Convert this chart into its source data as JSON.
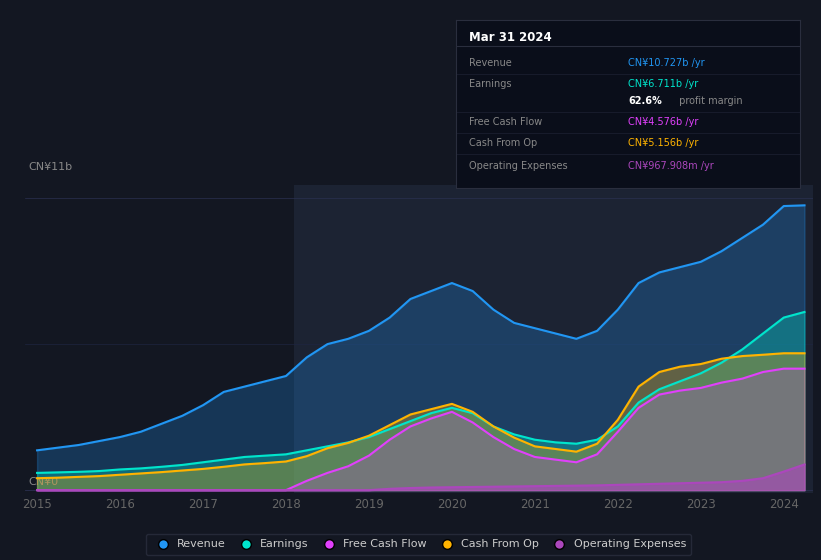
{
  "background_color": "#131722",
  "plot_bg_color": "#131722",
  "colors": {
    "revenue": "#2196f3",
    "earnings": "#00e5cc",
    "free_cash_flow": "#e040fb",
    "cash_from_op": "#ffb300",
    "operating_expenses": "#ab47bc"
  },
  "legend": [
    "Revenue",
    "Earnings",
    "Free Cash Flow",
    "Cash From Op",
    "Operating Expenses"
  ],
  "ylabel_top": "CN¥11b",
  "ylabel_bottom": "CN¥0",
  "x_years": [
    2015.0,
    2015.25,
    2015.5,
    2015.75,
    2016.0,
    2016.25,
    2016.5,
    2016.75,
    2017.0,
    2017.25,
    2017.5,
    2017.75,
    2018.0,
    2018.25,
    2018.5,
    2018.75,
    2019.0,
    2019.25,
    2019.5,
    2019.75,
    2020.0,
    2020.25,
    2020.5,
    2020.75,
    2021.0,
    2021.25,
    2021.5,
    2021.75,
    2022.0,
    2022.25,
    2022.5,
    2022.75,
    2023.0,
    2023.25,
    2023.5,
    2023.75,
    2024.0,
    2024.25
  ],
  "revenue": [
    1.5,
    1.6,
    1.7,
    1.85,
    2.0,
    2.2,
    2.5,
    2.8,
    3.2,
    3.7,
    3.9,
    4.1,
    4.3,
    5.0,
    5.5,
    5.7,
    6.0,
    6.5,
    7.2,
    7.5,
    7.8,
    7.5,
    6.8,
    6.3,
    6.1,
    5.9,
    5.7,
    6.0,
    6.8,
    7.8,
    8.2,
    8.4,
    8.6,
    9.0,
    9.5,
    10.0,
    10.7,
    10.727
  ],
  "earnings": [
    0.65,
    0.67,
    0.69,
    0.72,
    0.78,
    0.82,
    0.88,
    0.95,
    1.05,
    1.15,
    1.25,
    1.3,
    1.35,
    1.5,
    1.65,
    1.8,
    2.0,
    2.3,
    2.6,
    2.9,
    3.1,
    2.9,
    2.4,
    2.1,
    1.9,
    1.8,
    1.75,
    1.9,
    2.4,
    3.3,
    3.8,
    4.1,
    4.4,
    4.8,
    5.3,
    5.9,
    6.5,
    6.711
  ],
  "free_cash_flow": [
    0.0,
    0.0,
    0.0,
    0.0,
    0.0,
    0.0,
    0.0,
    0.0,
    0.0,
    0.0,
    0.0,
    0.0,
    0.0,
    0.35,
    0.65,
    0.9,
    1.3,
    1.9,
    2.4,
    2.7,
    2.95,
    2.55,
    2.0,
    1.55,
    1.25,
    1.15,
    1.05,
    1.35,
    2.2,
    3.1,
    3.6,
    3.75,
    3.85,
    4.05,
    4.2,
    4.45,
    4.576,
    4.576
  ],
  "cash_from_op": [
    0.45,
    0.47,
    0.5,
    0.53,
    0.58,
    0.63,
    0.68,
    0.74,
    0.8,
    0.88,
    0.97,
    1.02,
    1.08,
    1.28,
    1.58,
    1.78,
    2.05,
    2.45,
    2.85,
    3.05,
    3.25,
    2.95,
    2.4,
    1.98,
    1.65,
    1.55,
    1.45,
    1.75,
    2.65,
    3.9,
    4.45,
    4.65,
    4.75,
    4.95,
    5.05,
    5.1,
    5.156,
    5.156
  ],
  "operating_expenses": [
    0.0,
    0.0,
    0.0,
    0.0,
    0.0,
    0.0,
    0.0,
    0.0,
    0.0,
    0.0,
    0.0,
    0.0,
    0.0,
    0.0,
    0.0,
    0.0,
    0.0,
    0.05,
    0.08,
    0.1,
    0.11,
    0.12,
    0.13,
    0.14,
    0.15,
    0.16,
    0.17,
    0.18,
    0.2,
    0.22,
    0.24,
    0.26,
    0.28,
    0.3,
    0.35,
    0.45,
    0.7,
    0.968
  ],
  "xlim": [
    2014.85,
    2024.35
  ],
  "ylim": [
    -0.1,
    11.5
  ],
  "highlight_x_start": 2018.1,
  "highlight_x_end": 2024.35,
  "highlight_color": "#1c2333",
  "tooltip": {
    "title": "Mar 31 2024",
    "title_color": "#ffffff",
    "bg": "#0a0e1a",
    "border": "#2a2e3e",
    "rows": [
      {
        "label": "Revenue",
        "value": "CN¥10.727b /yr",
        "color": "#2196f3"
      },
      {
        "label": "Earnings",
        "value": "CN¥6.711b /yr",
        "color": "#00e5cc"
      },
      {
        "label": "",
        "value": "62.6%",
        "suffix": " profit margin",
        "color": "#ffffff"
      },
      {
        "label": "Free Cash Flow",
        "value": "CN¥4.576b /yr",
        "color": "#e040fb"
      },
      {
        "label": "Cash From Op",
        "value": "CN¥5.156b /yr",
        "color": "#ffb300"
      },
      {
        "label": "Operating Expenses",
        "value": "CN¥967.908m /yr",
        "color": "#ab47bc"
      }
    ]
  }
}
